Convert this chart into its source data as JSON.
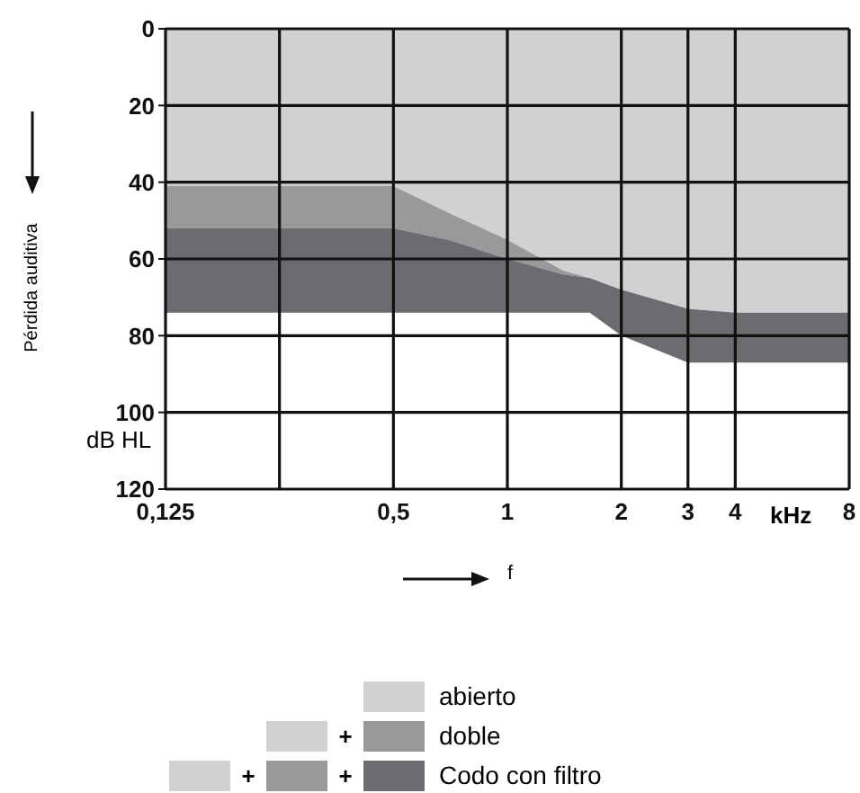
{
  "chart_data": {
    "type": "area",
    "stacked": true,
    "ylabel": "Pérdida auditiva",
    "xlabel": "f",
    "log": "x",
    "x": [
      0.125,
      0.25,
      0.5,
      0.7,
      1,
      1.4,
      1.65,
      2,
      3,
      4,
      8
    ],
    "xlim": [
      0.125,
      8
    ],
    "xticks": [
      {
        "value": 0.125,
        "label": "0,125"
      },
      {
        "value": 0.25,
        "label": null
      },
      {
        "value": 0.5,
        "label": "0,5"
      },
      1,
      2,
      3,
      4,
      8
    ],
    "ylim": [
      120,
      0
    ],
    "yticks": [
      0,
      20,
      40,
      60,
      80,
      100,
      120
    ],
    "grid": true,
    "legend": "bottom",
    "annotations": [
      "dB HL",
      "kHz",
      "+"
    ],
    "series": [
      {
        "name": "abierto",
        "color": "#d0d1d3",
        "values": [
          41,
          41,
          41,
          48,
          55,
          63,
          65,
          68,
          73,
          74,
          74
        ]
      },
      {
        "name": "doble",
        "color": "#98999b",
        "values": [
          11,
          11,
          11,
          7,
          5,
          1,
          0,
          0,
          0,
          0,
          0
        ]
      },
      {
        "name": "Codo con filtro",
        "color": "#6b6c6f",
        "values": [
          22,
          22,
          22,
          19,
          14,
          10,
          9,
          12,
          14,
          13,
          13
        ]
      }
    ]
  }
}
